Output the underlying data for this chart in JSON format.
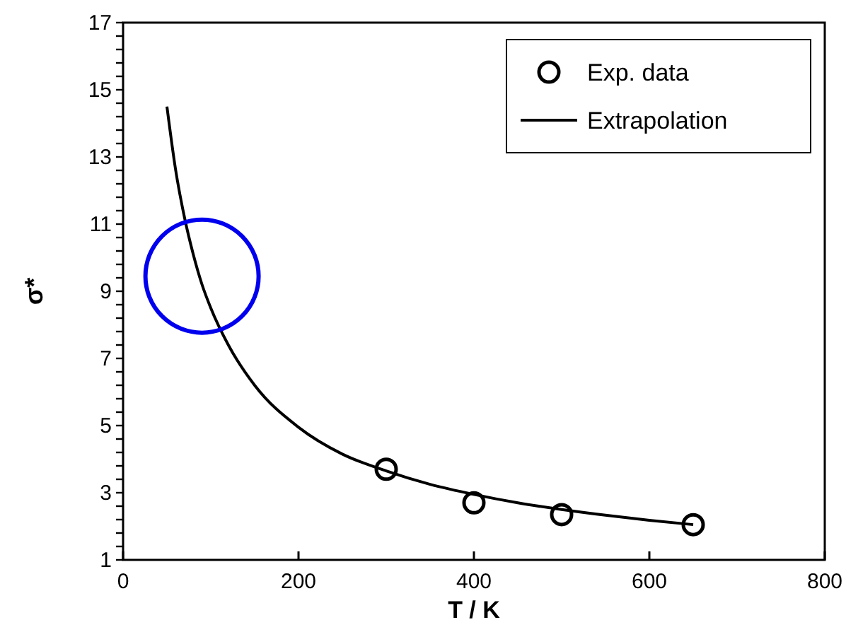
{
  "chart_data": {
    "type": "scatter",
    "xlabel": "T / K",
    "ylabel": "σ*",
    "xlim": [
      0,
      800
    ],
    "xticks": [
      0,
      200,
      400,
      600,
      800
    ],
    "ylim": [
      1,
      17
    ],
    "yticks": [
      1,
      {
        "value": 1.4,
        "label": null
      },
      {
        "value": 1.8,
        "label": null
      },
      {
        "value": 2.2,
        "label": null
      },
      {
        "value": 2.6,
        "label": null
      },
      3,
      {
        "value": 3.4,
        "label": null
      },
      {
        "value": 3.8,
        "label": null
      },
      {
        "value": 4.2,
        "label": null
      },
      {
        "value": 4.6,
        "label": null
      },
      5,
      {
        "value": 5.4,
        "label": null
      },
      {
        "value": 5.8,
        "label": null
      },
      {
        "value": 6.2,
        "label": null
      },
      {
        "value": 6.6,
        "label": null
      },
      7,
      {
        "value": 7.4,
        "label": null
      },
      {
        "value": 7.8,
        "label": null
      },
      {
        "value": 8.2,
        "label": null
      },
      {
        "value": 8.6,
        "label": null
      },
      9,
      {
        "value": 9.4,
        "label": null
      },
      {
        "value": 9.8,
        "label": null
      },
      {
        "value": 10.2,
        "label": null
      },
      {
        "value": 10.6,
        "label": null
      },
      11,
      {
        "value": 11.4,
        "label": null
      },
      {
        "value": 11.8,
        "label": null
      },
      {
        "value": 12.2,
        "label": null
      },
      {
        "value": 12.6,
        "label": null
      },
      13,
      {
        "value": 13.4,
        "label": null
      },
      {
        "value": 13.8,
        "label": null
      },
      {
        "value": 14.2,
        "label": null
      },
      {
        "value": 14.6,
        "label": null
      },
      15,
      {
        "value": 15.4,
        "label": null
      },
      {
        "value": 15.8,
        "label": null
      },
      {
        "value": 16.2,
        "label": null
      },
      {
        "value": 16.6,
        "label": null
      },
      17
    ],
    "grid": false,
    "legend": "top right",
    "series": [
      {
        "name": "Exp. data",
        "marker": "circle",
        "color": "#000000",
        "x": [
          300,
          400,
          500,
          650
        ],
        "values": [
          3.7,
          2.7,
          2.35,
          2.05
        ]
      },
      {
        "name": "Extrapolation",
        "type": "line",
        "marker": "none",
        "color": "#000000",
        "x": [
          50,
          60,
          70,
          80,
          90,
          100,
          120,
          150,
          200,
          250,
          300,
          350,
          400,
          450,
          500,
          550,
          600,
          650
        ],
        "values": [
          14.5,
          12.6,
          11.2,
          10.1,
          9.2,
          8.5,
          7.4,
          6.2,
          4.95,
          4.15,
          3.65,
          3.25,
          2.95,
          2.7,
          2.5,
          2.33,
          2.18,
          2.05
        ]
      }
    ]
  }
}
